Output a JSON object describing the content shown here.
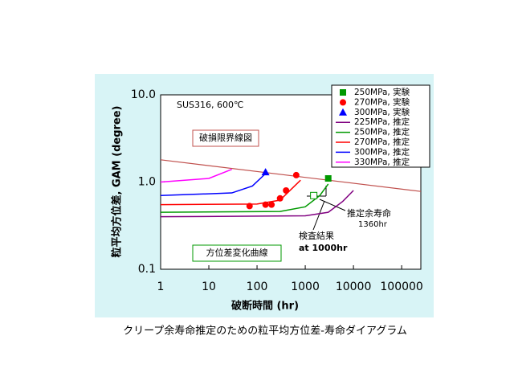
{
  "chart_data": {
    "type": "line",
    "title": "クリープ余寿命推定のための粒平均方位差-寿命ダイアグラム",
    "x_label": "破断時間 (hr)",
    "y_label": "粒平均方位差, GAM  (degree)",
    "log_x": true,
    "log_y": true,
    "xlim": [
      1,
      250000
    ],
    "ylim": [
      0.1,
      10
    ],
    "xticks": [
      1,
      10,
      100,
      1000,
      10000,
      100000
    ],
    "yticks": [
      {
        "value": 0.1,
        "label": "0.1"
      },
      {
        "value": 1,
        "label": "1.0"
      },
      {
        "value": 10,
        "label": "10.0"
      }
    ],
    "series": [
      {
        "name": "250MPa, 実験",
        "kind": "scatter",
        "marker": "square",
        "color": "#009900",
        "x": [
          3000
        ],
        "values": [
          1.1
        ]
      },
      {
        "name": "270MPa, 実験",
        "kind": "scatter",
        "marker": "circle",
        "color": "#ff0000",
        "x": [
          70,
          150,
          200,
          300,
          400,
          650
        ],
        "values": [
          0.53,
          0.55,
          0.55,
          0.65,
          0.8,
          1.2
        ]
      },
      {
        "name": "300MPa, 実験",
        "kind": "scatter",
        "marker": "triangle",
        "color": "#0000ff",
        "x": [
          150
        ],
        "values": [
          1.3
        ]
      },
      {
        "name": "225MPa, 推定",
        "kind": "line",
        "color": "#800080",
        "x": [
          1,
          1000,
          3000,
          6000,
          10000
        ],
        "values": [
          0.4,
          0.41,
          0.45,
          0.6,
          0.8
        ]
      },
      {
        "name": "250MPa, 推定",
        "kind": "line",
        "color": "#009900",
        "x": [
          1,
          300,
          1000,
          2000,
          3000
        ],
        "values": [
          0.45,
          0.46,
          0.52,
          0.7,
          0.95
        ]
      },
      {
        "name": "270MPa, 推定",
        "kind": "line",
        "color": "#ff0000",
        "x": [
          1,
          100,
          300,
          600,
          800
        ],
        "values": [
          0.55,
          0.56,
          0.62,
          0.9,
          1.05
        ]
      },
      {
        "name": "300MPa, 推定",
        "kind": "line",
        "color": "#0000ff",
        "x": [
          1,
          30,
          80,
          150
        ],
        "values": [
          0.7,
          0.75,
          0.9,
          1.25
        ]
      },
      {
        "name": "330MPa, 推定",
        "kind": "line",
        "color": "#ff00ff",
        "x": [
          1,
          10,
          30
        ],
        "values": [
          1.0,
          1.1,
          1.4
        ]
      }
    ],
    "limit_line": {
      "label": "破損限界線図",
      "color": "#c0504d",
      "x": [
        1,
        250000
      ],
      "values": [
        1.8,
        0.78
      ]
    },
    "estimate_point": {
      "x": 1500,
      "value": 0.7,
      "color": "#009900"
    },
    "annotations": {
      "material": "SUS316, 600℃",
      "curve_label": "方位差変化曲線",
      "estimate": "推定余寿命",
      "estimate_value": "1360hr",
      "inspection": "検査結果",
      "inspection_time": "at 1000hr"
    }
  }
}
